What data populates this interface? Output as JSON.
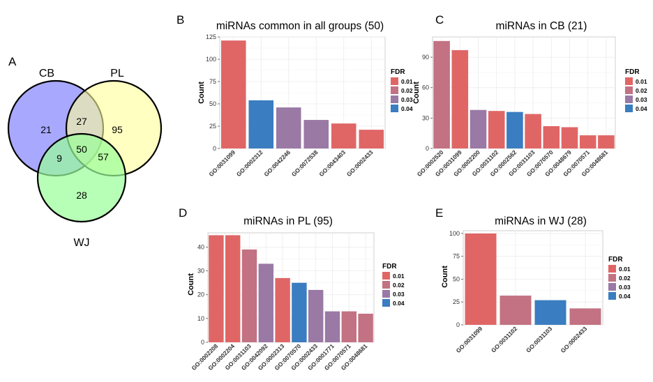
{
  "fdr_colors": {
    "0.01": "#e06666",
    "0.02": "#c27282",
    "0.03": "#9a79a5",
    "0.04": "#3a7dc0"
  },
  "venn": {
    "panel_label": "A",
    "sets": [
      {
        "label": "CB",
        "color": "#9999ff"
      },
      {
        "label": "PL",
        "color": "#ffff99"
      },
      {
        "label": "WJ",
        "color": "#99ff99"
      }
    ],
    "regions": {
      "CB_only": "21",
      "PL_only": "95",
      "WJ_only": "28",
      "CB_PL": "27",
      "CB_WJ": "9",
      "PL_WJ": "57",
      "all": "50"
    }
  },
  "chart_data": [
    {
      "panel_label": "B",
      "type": "bar",
      "title": "miRNAs common in all groups (50)",
      "ylabel": "Count",
      "xlabel": "",
      "legend_title": "FDR",
      "legend_entries": [
        "0.01",
        "0.02",
        "0.03",
        "0.04"
      ],
      "legend_position": "right",
      "grid": true,
      "ylim": [
        0,
        125
      ],
      "yticks": [
        0,
        25,
        50,
        75,
        100,
        125
      ],
      "categories": [
        "GO:0031099",
        "GO:0002312",
        "GO:0042246",
        "GO:0072538",
        "GO:0043403",
        "GO:0002433"
      ],
      "values": [
        121,
        54,
        46,
        32,
        28,
        21
      ],
      "fdr": [
        "0.01",
        "0.04",
        "0.03",
        "0.03",
        "0.01",
        "0.01"
      ]
    },
    {
      "panel_label": "C",
      "type": "bar",
      "title": "miRNAs in CB (21)",
      "ylabel": "Count",
      "xlabel": "",
      "legend_title": "FDR",
      "legend_entries": [
        "0.01",
        "0.02",
        "0.03",
        "0.04"
      ],
      "legend_position": "right",
      "grid": true,
      "ylim": [
        0,
        110
      ],
      "yticks": [
        0,
        30,
        60,
        90
      ],
      "categories": [
        "GO:0002520",
        "GO:0031099",
        "GO:0002200",
        "GO:0031102",
        "GO:0002562",
        "GO:0031103",
        "GO:0070570",
        "GO:0048679",
        "GO:0070571",
        "GO:0048681"
      ],
      "values": [
        106,
        97,
        38,
        37,
        36,
        34,
        22,
        21,
        13,
        13
      ],
      "fdr": [
        "0.02",
        "0.01",
        "0.03",
        "0.01",
        "0.04",
        "0.01",
        "0.01",
        "0.01",
        "0.01",
        "0.01"
      ]
    },
    {
      "panel_label": "D",
      "type": "bar",
      "title": "miRNAs in PL (95)",
      "ylabel": "Count",
      "xlabel": "",
      "legend_title": "FDR",
      "legend_entries": [
        "0.01",
        "0.02",
        "0.03",
        "0.04"
      ],
      "legend_position": "right",
      "grid": true,
      "ylim": [
        0,
        46
      ],
      "yticks": [
        0,
        10,
        20,
        30,
        40
      ],
      "categories": [
        "GO:0002208",
        "GO:0002204",
        "GO:0031103",
        "GO:0042092",
        "GO:0002313",
        "GO:0070570",
        "GO:0002433",
        "GO:0001771",
        "GO:0070571",
        "GO:0048681"
      ],
      "values": [
        45,
        45,
        39,
        33,
        27,
        25,
        22,
        13,
        13,
        12
      ],
      "fdr": [
        "0.01",
        "0.01",
        "0.02",
        "0.03",
        "0.01",
        "0.04",
        "0.03",
        "0.03",
        "0.02",
        "0.02"
      ]
    },
    {
      "panel_label": "E",
      "type": "bar",
      "title": "miRNAs in WJ (28)",
      "ylabel": "Count",
      "xlabel": "",
      "legend_title": "FDR",
      "legend_entries": [
        "0.01",
        "0.02",
        "0.03",
        "0.04"
      ],
      "legend_position": "right",
      "grid": true,
      "ylim": [
        0,
        103
      ],
      "yticks": [
        0,
        25,
        50,
        75,
        100
      ],
      "categories": [
        "GO:0031099",
        "GO:0031102",
        "GO:0031103",
        "GO:0002433"
      ],
      "values": [
        100,
        32,
        27,
        18
      ],
      "fdr": [
        "0.01",
        "0.02",
        "0.04",
        "0.02"
      ]
    }
  ]
}
